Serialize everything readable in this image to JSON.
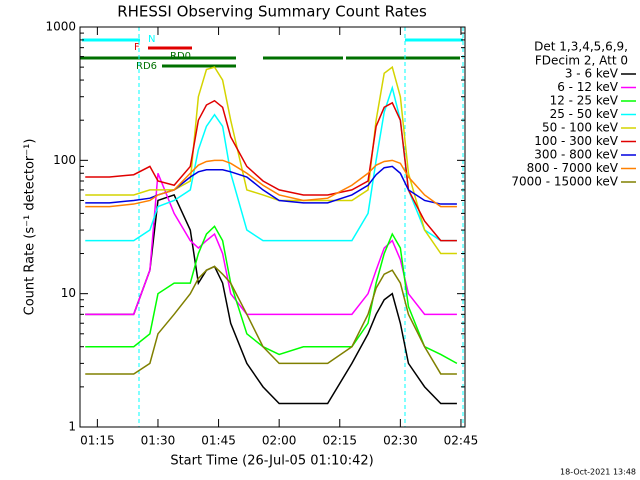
{
  "chart_data": {
    "type": "line",
    "title": "RHESSI Observing Summary Count Rates",
    "x_label": "Start Time (26-Jul-05 01:10:42)",
    "y_label": "Count Rate (s⁻¹ detector⁻¹)",
    "legend_header": [
      "Det 1,3,4,5,6,9,",
      "FDecim 2, Att 0"
    ],
    "timestamp": "18-Oct-2021 13:48",
    "flags": [
      "N",
      "F",
      "RD0",
      "RD6"
    ],
    "yscale": "log",
    "xlim": [
      70.7,
      166
    ],
    "ylim": [
      1,
      1000
    ],
    "yticks": [
      1,
      10,
      100,
      1000
    ],
    "xticks": [
      {
        "value": 75,
        "label": "01:15"
      },
      {
        "value": 90,
        "label": "01:30"
      },
      {
        "value": 105,
        "label": "01:45"
      },
      {
        "value": 120,
        "label": "02:00"
      },
      {
        "value": 135,
        "label": "02:15"
      },
      {
        "value": 150,
        "label": "02:30"
      },
      {
        "value": 165,
        "label": "02:45"
      }
    ],
    "x": [
      72,
      78,
      84,
      88,
      90,
      94,
      98,
      100,
      102,
      104,
      106,
      108,
      112,
      116,
      120,
      126,
      132,
      138,
      142,
      144,
      146,
      148,
      150,
      152,
      156,
      160,
      164
    ],
    "series": [
      {
        "name": "3 - 6 keV",
        "color": "#000000",
        "values": [
          7,
          7,
          7,
          15,
          50,
          55,
          30,
          12,
          15,
          16,
          12,
          6,
          3,
          2,
          1.5,
          1.5,
          1.5,
          3,
          5,
          7,
          9,
          10,
          6,
          3,
          2,
          1.5,
          1.5
        ]
      },
      {
        "name": "6 - 12 keV",
        "color": "#ff00ff",
        "values": [
          7,
          7,
          7,
          15,
          80,
          40,
          25,
          22,
          25,
          28,
          20,
          10,
          7,
          7,
          7,
          7,
          7,
          7,
          10,
          15,
          22,
          25,
          18,
          10,
          7,
          7,
          7
        ]
      },
      {
        "name": "12 - 25 keV",
        "color": "#00ff00",
        "values": [
          4,
          4,
          4,
          5,
          10,
          12,
          12,
          20,
          28,
          32,
          25,
          12,
          5,
          4,
          3.5,
          4,
          4,
          4,
          6,
          12,
          20,
          28,
          22,
          8,
          4,
          3.5,
          3
        ]
      },
      {
        "name": "25 - 50 keV",
        "color": "#00ffff",
        "values": [
          25,
          25,
          25,
          30,
          45,
          50,
          60,
          120,
          180,
          220,
          180,
          80,
          30,
          25,
          25,
          25,
          25,
          25,
          40,
          100,
          230,
          350,
          200,
          60,
          30,
          25,
          25
        ]
      },
      {
        "name": "50 - 100 keV",
        "color": "#d4d400",
        "values": [
          55,
          55,
          55,
          60,
          60,
          60,
          70,
          300,
          480,
          500,
          400,
          200,
          60,
          55,
          50,
          50,
          50,
          50,
          60,
          200,
          450,
          500,
          300,
          80,
          30,
          20,
          20
        ]
      },
      {
        "name": "100 - 300 keV",
        "color": "#e00000",
        "values": [
          75,
          75,
          78,
          90,
          70,
          65,
          90,
          200,
          260,
          280,
          250,
          150,
          90,
          70,
          60,
          55,
          55,
          60,
          70,
          180,
          250,
          270,
          200,
          60,
          35,
          25,
          25
        ]
      },
      {
        "name": "300 - 800 keV",
        "color": "#0000e0",
        "values": [
          48,
          48,
          50,
          52,
          55,
          60,
          75,
          82,
          85,
          85,
          85,
          82,
          75,
          60,
          50,
          48,
          48,
          55,
          65,
          78,
          88,
          90,
          80,
          60,
          50,
          47,
          47
        ]
      },
      {
        "name": "800 - 7000 keV",
        "color": "#ff8000",
        "values": [
          45,
          45,
          47,
          50,
          55,
          60,
          80,
          92,
          98,
          100,
          100,
          95,
          80,
          65,
          55,
          50,
          52,
          65,
          80,
          92,
          98,
          100,
          95,
          75,
          55,
          45,
          45
        ]
      },
      {
        "name": "7000 - 15000 keV",
        "color": "#808000",
        "values": [
          2.5,
          2.5,
          2.5,
          3,
          5,
          7,
          10,
          13,
          15,
          16,
          14,
          12,
          7,
          4,
          3,
          3,
          3,
          4,
          7,
          11,
          14,
          15,
          12,
          7,
          4,
          2.5,
          2.5
        ]
      }
    ]
  }
}
